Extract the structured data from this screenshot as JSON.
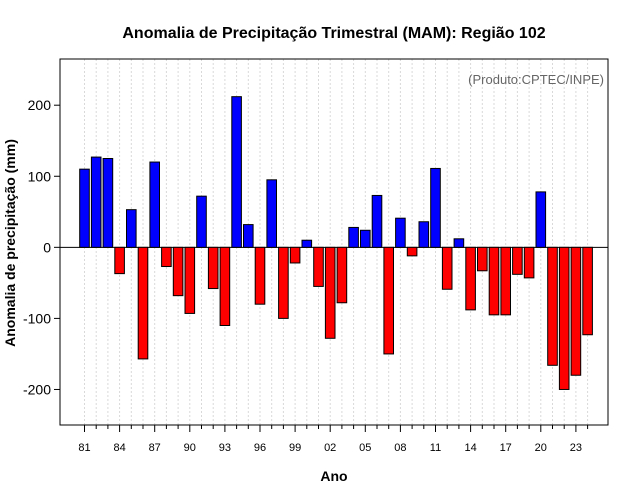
{
  "chart_data": {
    "type": "bar",
    "title": "Anomalia de Precipitação Trimestral (MAM): Região 102",
    "xlabel": "Ano",
    "ylabel": "Anomalia de precipitação (mm)",
    "credit": "(Produto:CPTEC/INPE)",
    "ylim": [
      -250,
      265
    ],
    "yticks": [
      -200,
      -100,
      0,
      100,
      200
    ],
    "xtick_labels": [
      "81",
      "84",
      "87",
      "90",
      "93",
      "96",
      "99",
      "02",
      "05",
      "08",
      "11",
      "14",
      "17",
      "20",
      "23"
    ],
    "categories": [
      "1981",
      "1982",
      "1983",
      "1984",
      "1985",
      "1986",
      "1987",
      "1988",
      "1989",
      "1990",
      "1991",
      "1992",
      "1993",
      "1994",
      "1995",
      "1996",
      "1997",
      "1998",
      "1999",
      "2000",
      "2001",
      "2002",
      "2003",
      "2004",
      "2005",
      "2006",
      "2007",
      "2008",
      "2009",
      "2010",
      "2011",
      "2012",
      "2013",
      "2014",
      "2015",
      "2016",
      "2017",
      "2018",
      "2019",
      "2020",
      "2021",
      "2022",
      "2023",
      "2024"
    ],
    "values": [
      110,
      127,
      125,
      -37,
      53,
      -157,
      120,
      -27,
      -68,
      -93,
      72,
      -58,
      -110,
      212,
      32,
      -80,
      95,
      -100,
      -22,
      10,
      -55,
      -128,
      -78,
      28,
      24,
      73,
      -150,
      41,
      -12,
      36,
      111,
      -59,
      12,
      -88,
      -33,
      -95,
      -95,
      -38,
      -43,
      78,
      -166,
      -200,
      -180,
      -123
    ],
    "colors": {
      "positive": "#0000ff",
      "negative": "#ff0000",
      "grid": "#d9d9d9"
    }
  }
}
